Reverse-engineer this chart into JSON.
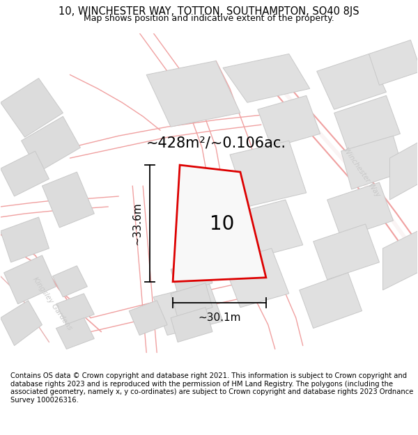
{
  "title": "10, WINCHESTER WAY, TOTTON, SOUTHAMPTON, SO40 8JS",
  "subtitle": "Map shows position and indicative extent of the property.",
  "footnote": "Contains OS data © Crown copyright and database right 2021. This information is subject to Crown copyright and database rights 2023 and is reproduced with the permission of HM Land Registry. The polygons (including the associated geometry, namely x, y co-ordinates) are subject to Crown copyright and database rights 2023 Ordnance Survey 100026316.",
  "area_label": "~428m²/~0.106ac.",
  "plot_number": "10",
  "width_label": "~30.1m",
  "height_label": "~33.6m",
  "map_bg": "#ffffff",
  "building_fill": "#dcdcdc",
  "building_edge": "#c8c8c8",
  "road_line_color": "#f0a0a0",
  "road_line_thin": "#e8b0b0",
  "plot_line_color": "#dd0000",
  "plot_fill": "#f8f8f8",
  "street_label_color": "#c8c8c8",
  "dim_color": "#000000",
  "title_fontsize": 10.5,
  "subtitle_fontsize": 9,
  "footnote_fontsize": 7.2,
  "area_label_fontsize": 15,
  "plot_number_fontsize": 20,
  "dim_label_fontsize": 11
}
